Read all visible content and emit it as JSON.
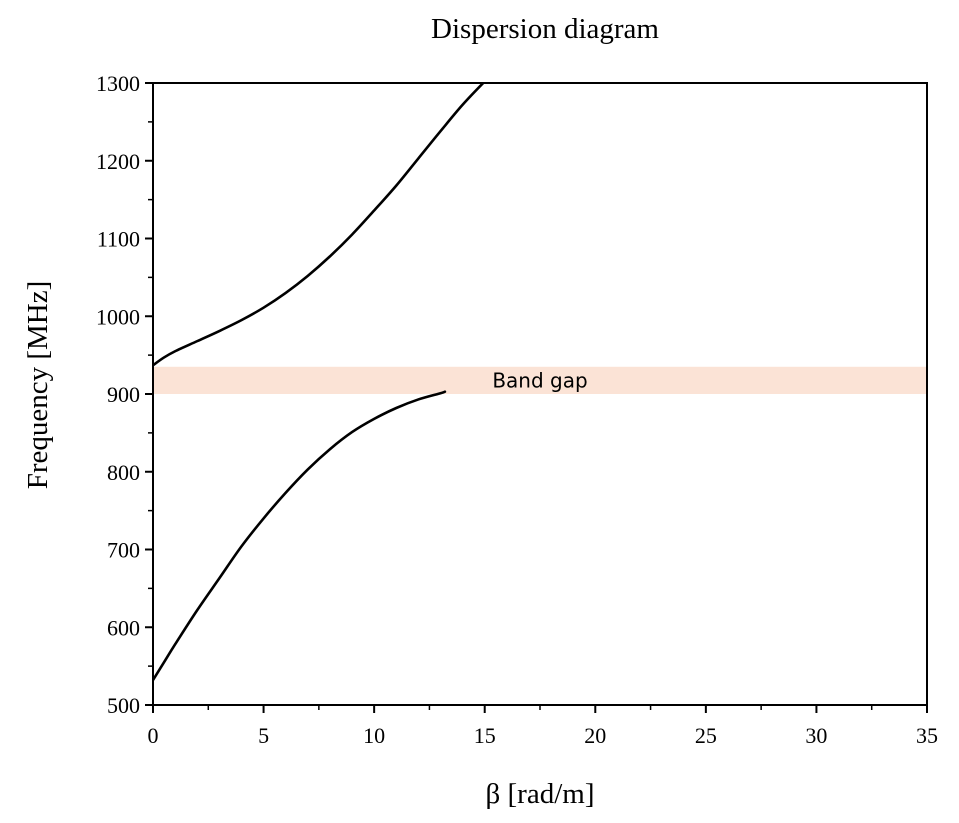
{
  "chart_data": {
    "type": "line",
    "title": "Dispersion diagram",
    "xlabel": "β [rad/m]",
    "ylabel": "Frequency [MHz]",
    "xlim": [
      0,
      35
    ],
    "ylim": [
      500,
      1300
    ],
    "xticks": [
      0,
      5,
      10,
      15,
      20,
      25,
      30,
      35
    ],
    "yticks": [
      500,
      600,
      700,
      800,
      900,
      1000,
      1100,
      1200,
      1300
    ],
    "grid": false,
    "band": {
      "label": "Band gap",
      "ymin": 900,
      "ymax": 935,
      "color": "#fbe3d6"
    },
    "line_color": "#000000",
    "series": [
      {
        "x": [
          0,
          0.5,
          1,
          2,
          3,
          4,
          5,
          6,
          7,
          8,
          9,
          10,
          11,
          12,
          13,
          13.2
        ],
        "y": [
          532,
          555,
          578,
          622,
          663,
          704,
          740,
          773,
          803,
          829,
          851,
          868,
          882,
          893,
          901,
          903
        ]
      },
      {
        "x": [
          0,
          0.5,
          1,
          2,
          3,
          4,
          5,
          6,
          7,
          8,
          9,
          10,
          11,
          12,
          13,
          14,
          15,
          16
        ],
        "y": [
          937,
          947,
          955,
          968,
          981,
          995,
          1011,
          1030,
          1052,
          1077,
          1105,
          1136,
          1168,
          1203,
          1238,
          1272,
          1302,
          1330
        ]
      }
    ]
  }
}
